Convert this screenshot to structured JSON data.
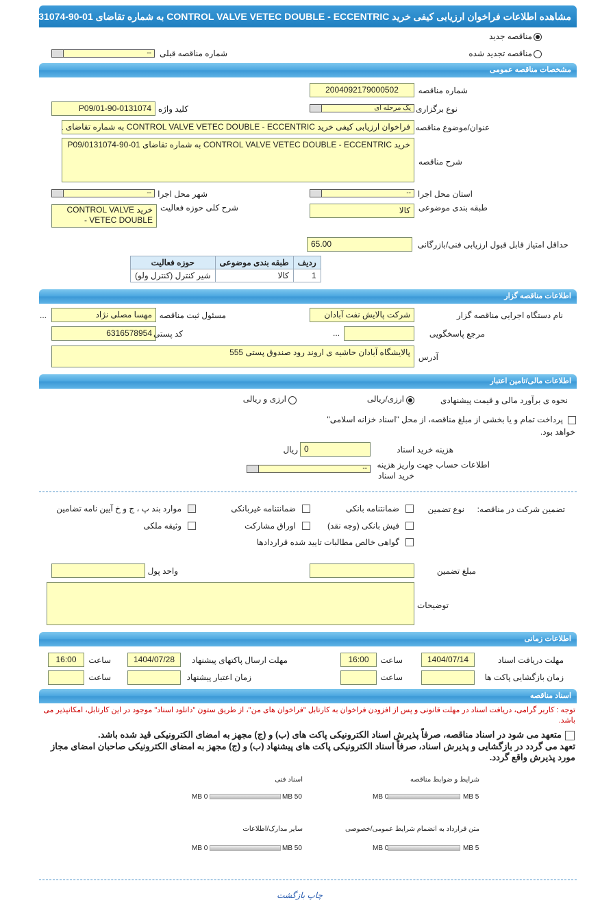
{
  "title": "مشاهده اطلاعات فراخوان ارزیابی کیفی خرید CONTROL VALVE VETEC DOUBLE - ECCENTRIC به شماره تقاضای 01-90-P09/0131074",
  "tender_kind": {
    "new": "مناقصه جدید",
    "renewed": "مناقصه تجدید شده",
    "selected": "new",
    "prev_label": "شماره مناقصه قبلی",
    "prev_value": "--"
  },
  "general": {
    "header": "مشخصات مناقصه عمومی",
    "number_label": "شماره مناقصه",
    "number": "2004092179000502",
    "keyword_label": "کلید واژه",
    "keyword": "P09/01-90-0131074",
    "type_label": "نوع برگزاری",
    "type": "یک مرحله ای",
    "subject_label": "عنوان/موضوع مناقصه",
    "subject": "فراخوان ارزیابی کیفی خرید CONTROL VALVE VETEC  DOUBLE - ECCENTRIC به شماره تقاضای 01",
    "desc_label": "شرح مناقصه",
    "desc": "خرید CONTROL VALVE VETEC  DOUBLE - ECCENTRIC به شماره تقاضای 01-90-P09/0131074",
    "province_label": "استان محل اجرا",
    "province": "--",
    "city_label": "شهر محل اجرا",
    "city": "--",
    "category_label": "طبقه بندی موضوعی",
    "category": "کالا",
    "activity_label": "شرح کلی حوزه فعالیت",
    "activity": "خرید CONTROL VALVE VETEC  DOUBLE -",
    "min_score_label": "حداقل امتیاز قابل قبول ارزیابی فنی/بازرگانی",
    "min_score": "65.00",
    "table": {
      "headers": [
        "ردیف",
        "طبقه بندی موضوعی",
        "حوزه فعالیت"
      ],
      "rows": [
        [
          "1",
          "کالا",
          "شیر کنترل (کنترل ولو)"
        ]
      ]
    }
  },
  "organizer": {
    "header": "اطلاعات مناقصه گزار",
    "org_label": "نام دستگاه اجرایی مناقصه گزار",
    "org": "شرکت پالایش نفت آبادان",
    "registrar_label": "مسئول ثبت مناقصه",
    "registrar": "مهسا مصلی نژاد",
    "more": "...",
    "ref_label": "مرجع پاسخگویی",
    "ref": "",
    "ref_more": "...",
    "postal_label": "کد پستی",
    "postal": "6316578954",
    "address_label": "آدرس",
    "address": "پالایشگاه آبادان حاشیه ی اروند رود صندوق پستی 555"
  },
  "finance": {
    "header": "اطلاعات مالی/تامین اعتبار",
    "method_label": "نحوه ی برآورد مالی و قیمت پیشنهادی",
    "opt1": "ارزی/ریالی",
    "opt2": "ارزی و ریالی",
    "treasury_line1": "پرداخت تمام و یا بخشی از مبلغ مناقصه، از محل \"اسناد خزانه اسلامی\"",
    "treasury_line2": "خواهد بود.",
    "cost_label": "هزینه خرید اسناد",
    "cost": "0",
    "currency": "ریال",
    "account_label1": "اطلاعات حساب جهت واریز هزینه",
    "account_label2": "خرید اسناد",
    "account": "--"
  },
  "guarantee": {
    "label": "تضمین شرکت در مناقصه:",
    "type_label": "نوع تضمین",
    "options": [
      "ضمانتنامه بانکی",
      "ضمانتنامه غیربانکی",
      "موارد بند پ ، ج و خ آیین نامه تضامین",
      "فیش بانکی (وجه نقد)",
      "اوراق مشارکت",
      "وثیقه ملکی",
      "گواهی خالص مطالبات تایید شده قراردادها"
    ],
    "amount_label": "مبلغ تضمین",
    "amount": "",
    "unit_label": "واحد پول",
    "unit": "",
    "notes_label": "توضیحات",
    "notes": ""
  },
  "timing": {
    "header": "اطلاعات زمانی",
    "receive_label": "مهلت دریافت اسناد",
    "receive_date": "1404/07/14",
    "receive_time": "16:00",
    "send_label": "مهلت ارسال پاکتهای پیشنهاد",
    "send_date": "1404/07/28",
    "send_time": "16:00",
    "time_label": "ساعت",
    "open_label": "زمان بازگشایی پاکت ها",
    "validity_label": "زمان اعتبار پیشنهاد"
  },
  "docs": {
    "header": "اسناد مناقصه",
    "note": "توجه : کاربر گرامی، دریافت اسناد در مهلت قانونی و پس از افزودن فراخوان به کارتابل \"فراخوان های من\"، از طریق ستون \"دانلود اسناد\" موجود در این کارتابل، امکانپذیر می باشد.",
    "commit1": "متعهد می شود در اسناد مناقصه، صرفاً پذیرش اسناد الکترونیکی پاکت های (ب) و (ج) مجهز به امضای الکترونیکی قید شده باشد.",
    "commit2": "تعهد می گردد در بازگشایی و پذیرش اسناد، صرفاً اسناد الکترونیکی پاکت های پیشنهاد (ب) و (ج) مجهز به امضای الکترونیکی صاحبان امضای مجاز مورد پذیرش واقع گردد.",
    "files": [
      {
        "name": "شرایط و ضوابط مناقصه",
        "min": "0 MB",
        "max": "5 MB",
        "fill": 0
      },
      {
        "name": "اسناد فنی",
        "min": "0 MB",
        "max": "50 MB",
        "fill": 0
      },
      {
        "name": "متن قرارداد به انضمام شرایط عمومی/خصوصی",
        "min": "0 MB",
        "max": "5 MB",
        "fill": 0
      },
      {
        "name": "سایر مدارک/اطلاعات",
        "min": "0 MB",
        "max": "50 MB",
        "fill": 0
      }
    ]
  },
  "footer": {
    "print": "چاپ",
    "back": "بازگشت"
  }
}
